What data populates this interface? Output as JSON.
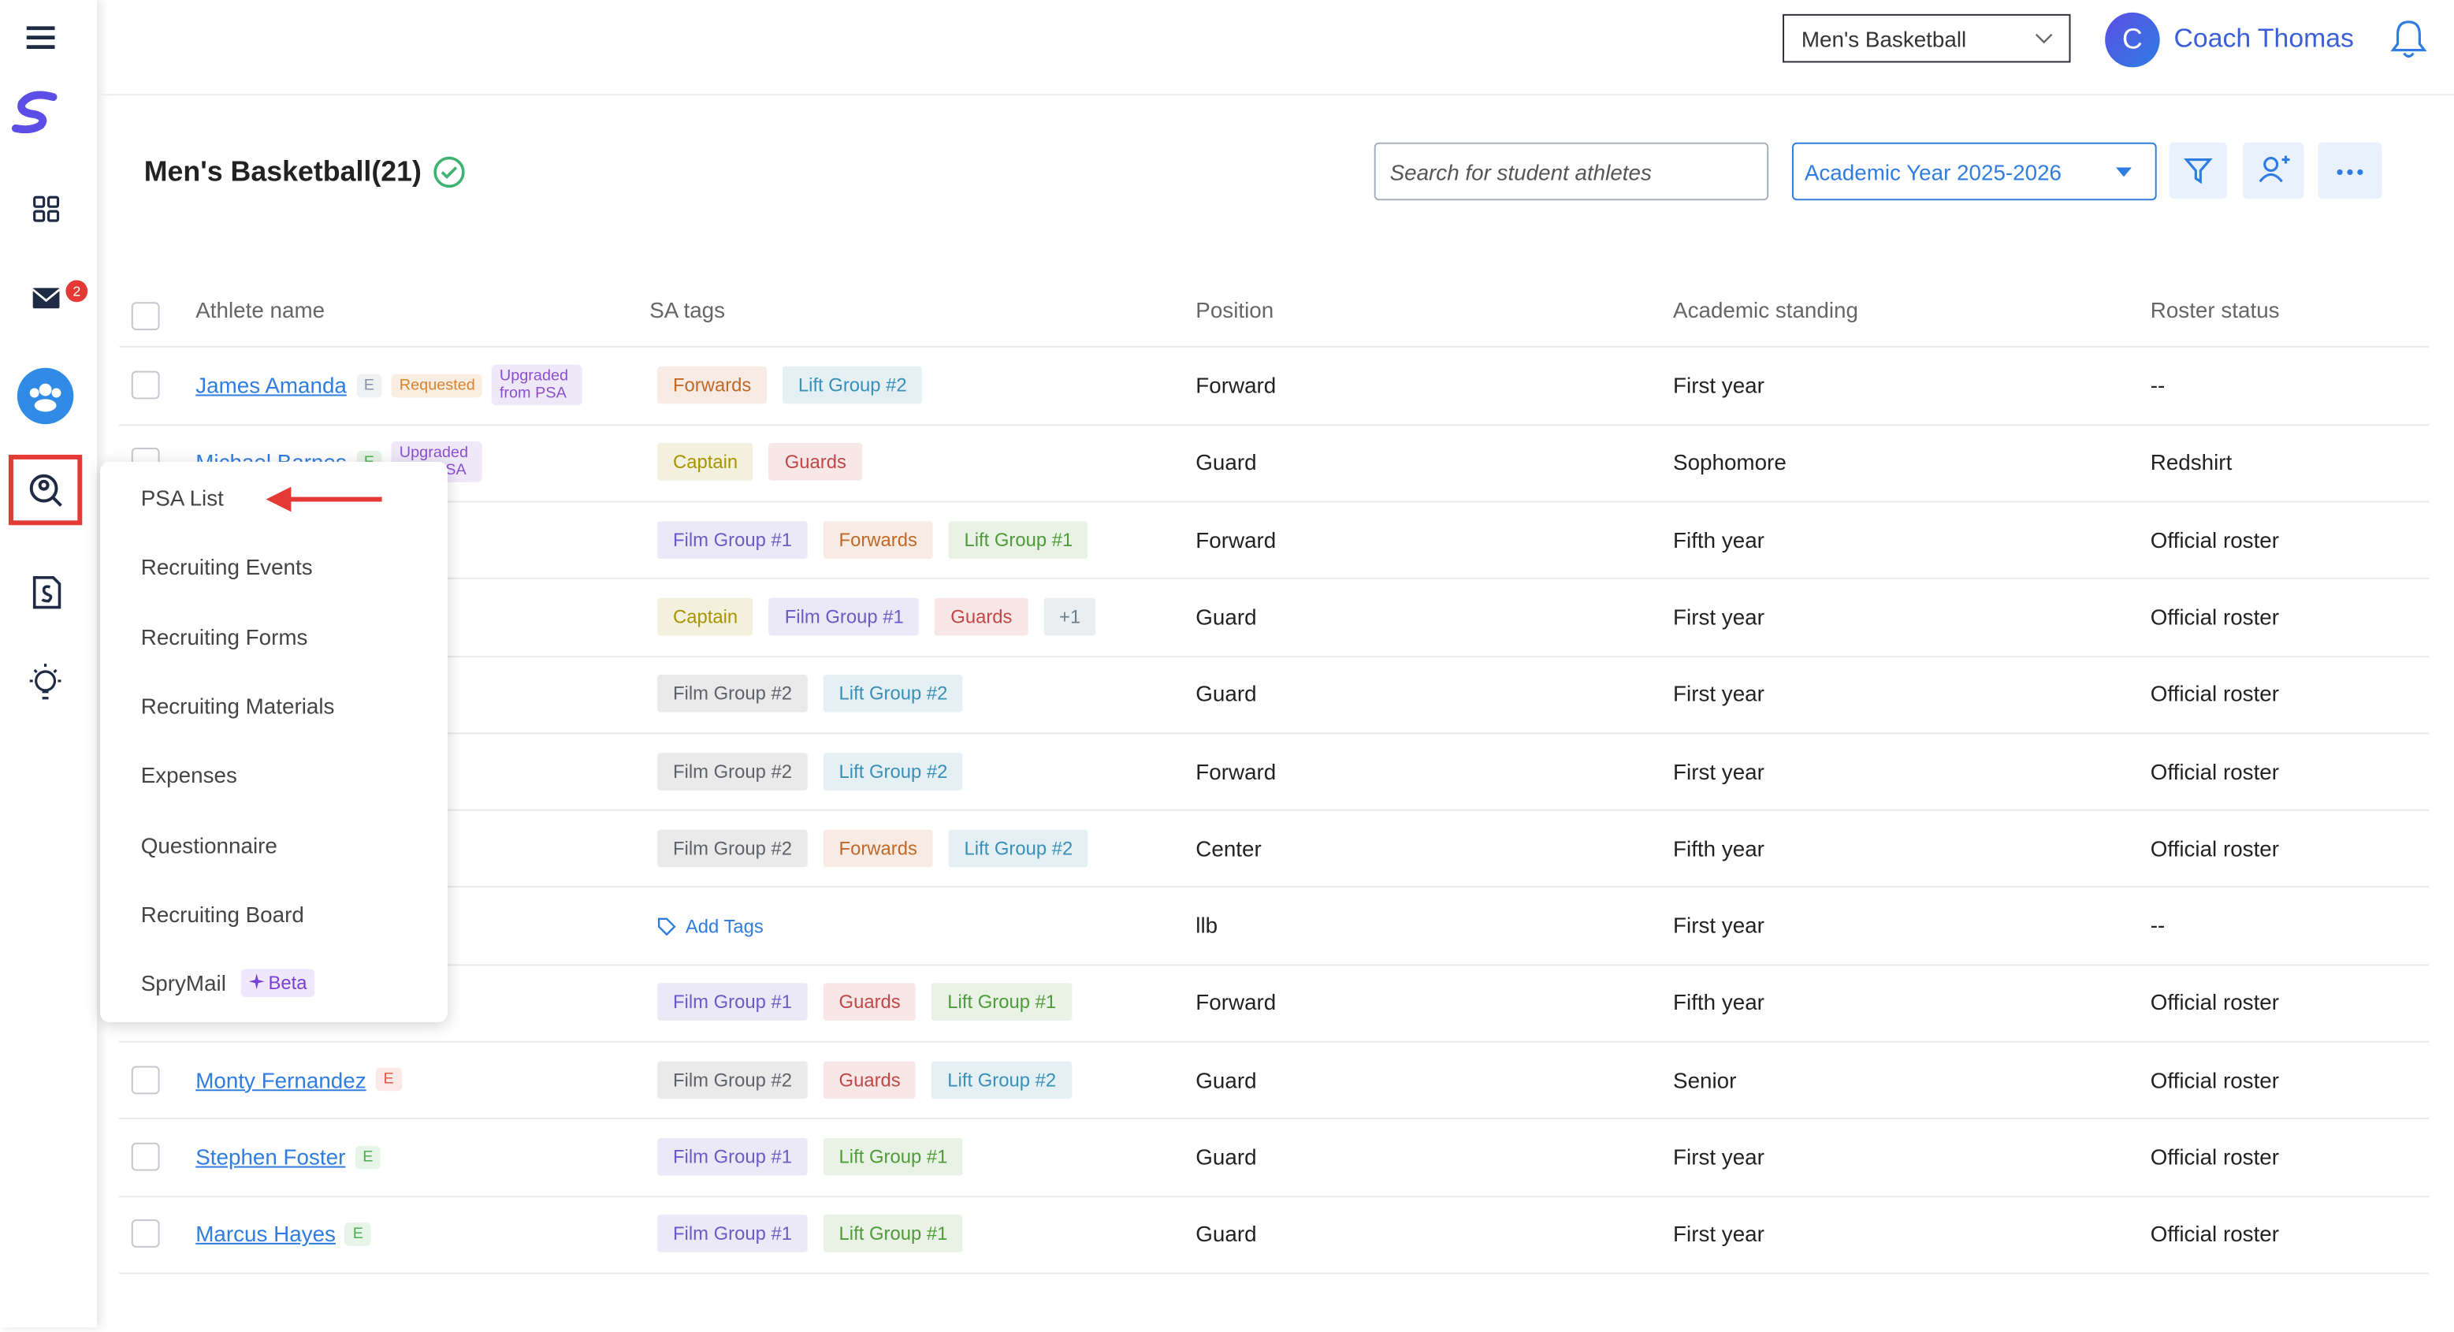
{
  "header": {
    "team": "Men's Basketball",
    "user_initial": "C",
    "user_name": "Coach Thomas"
  },
  "sidebar": {
    "mail_badge": "2"
  },
  "page": {
    "title": "Men's Basketball(21)",
    "search_placeholder": "Search for student athletes",
    "year": "Academic Year 2025-2026"
  },
  "table": {
    "columns": [
      "Athlete name",
      "SA tags",
      "Position",
      "Academic standing",
      "Roster status"
    ],
    "rows": [
      {
        "name": "James Amanda",
        "badges": [
          {
            "text": "E",
            "color": "#8a94a6"
          },
          {
            "text": "Requested",
            "color": "#d9822b"
          },
          {
            "text": "Upgraded from PSA",
            "color": "#8a4fd1"
          }
        ],
        "tags": [
          {
            "text": "Forwards",
            "color": "#c0692a"
          },
          {
            "text": "Lift Group #2",
            "color": "#3a8fb7"
          }
        ],
        "position": "Forward",
        "standing": "First year",
        "status": "--"
      },
      {
        "name": "Michael Barnes",
        "badges": [
          {
            "text": "E",
            "color": "#4caf50"
          },
          {
            "text": "Upgraded from PSA",
            "color": "#8a4fd1"
          }
        ],
        "tags": [
          {
            "text": "Captain",
            "color": "#a89400"
          },
          {
            "text": "Guards",
            "color": "#c04848"
          }
        ],
        "position": "Guard",
        "standing": "Sophomore",
        "status": "Redshirt"
      },
      {
        "tags": [
          {
            "text": "Film Group #1",
            "color": "#6b5bc5"
          },
          {
            "text": "Forwards",
            "color": "#c0692a"
          },
          {
            "text": "Lift Group #1",
            "color": "#4f9a3a"
          }
        ],
        "position": "Forward",
        "standing": "Fifth year",
        "status": "Official roster"
      },
      {
        "tags": [
          {
            "text": "Captain",
            "color": "#a89400"
          },
          {
            "text": "Film Group #1",
            "color": "#6b5bc5"
          },
          {
            "text": "Guards",
            "color": "#c04848"
          },
          {
            "text": "+1",
            "color": "#6a7f8e"
          }
        ],
        "position": "Guard",
        "standing": "First year",
        "status": "Official roster"
      },
      {
        "tags": [
          {
            "text": "Film Group #2",
            "color": "#5f6368"
          },
          {
            "text": "Lift Group #2",
            "color": "#3a8fb7"
          }
        ],
        "position": "Guard",
        "standing": "First year",
        "status": "Official roster"
      },
      {
        "tags": [
          {
            "text": "Film Group #2",
            "color": "#5f6368"
          },
          {
            "text": "Lift Group #2",
            "color": "#3a8fb7"
          }
        ],
        "position": "Forward",
        "standing": "First year",
        "status": "Official roster"
      },
      {
        "tags": [
          {
            "text": "Film Group #2",
            "color": "#5f6368"
          },
          {
            "text": "Forwards",
            "color": "#c0692a"
          },
          {
            "text": "Lift Group #2",
            "color": "#3a8fb7"
          }
        ],
        "position": "Center",
        "standing": "Fifth year",
        "status": "Official roster"
      },
      {
        "add_tags": "Add Tags",
        "tags": [],
        "position": "llb",
        "standing": "First year",
        "status": "--"
      },
      {
        "tags": [
          {
            "text": "Film Group #1",
            "color": "#6b5bc5"
          },
          {
            "text": "Guards",
            "color": "#c04848"
          },
          {
            "text": "Lift Group #1",
            "color": "#4f9a3a"
          }
        ],
        "position": "Forward",
        "standing": "Fifth year",
        "status": "Official roster"
      },
      {
        "name": "Monty Fernandez",
        "badges": [
          {
            "text": "E",
            "color": "#e05a4a"
          }
        ],
        "tags": [
          {
            "text": "Film Group #2",
            "color": "#5f6368"
          },
          {
            "text": "Guards",
            "color": "#c04848"
          },
          {
            "text": "Lift Group #2",
            "color": "#3a8fb7"
          }
        ],
        "position": "Guard",
        "standing": "Senior",
        "status": "Official roster"
      },
      {
        "name": "Stephen Foster",
        "badges": [
          {
            "text": "E",
            "color": "#4caf50"
          }
        ],
        "tags": [
          {
            "text": "Film Group #1",
            "color": "#6b5bc5"
          },
          {
            "text": "Lift Group #1",
            "color": "#4f9a3a"
          }
        ],
        "position": "Guard",
        "standing": "First year",
        "status": "Official roster"
      },
      {
        "name": "Marcus Hayes",
        "badges": [
          {
            "text": "E",
            "color": "#4caf50"
          }
        ],
        "tags": [
          {
            "text": "Film Group #1",
            "color": "#6b5bc5"
          },
          {
            "text": "Lift Group #1",
            "color": "#4f9a3a"
          }
        ],
        "position": "Guard",
        "standing": "First year",
        "status": "Official roster"
      }
    ]
  },
  "menu": {
    "items": [
      "PSA List",
      "Recruiting Events",
      "Recruiting Forms",
      "Recruiting Materials",
      "Expenses",
      "Questionnaire",
      "Recruiting Board",
      "SpryMail"
    ],
    "beta_badge": "Beta"
  }
}
